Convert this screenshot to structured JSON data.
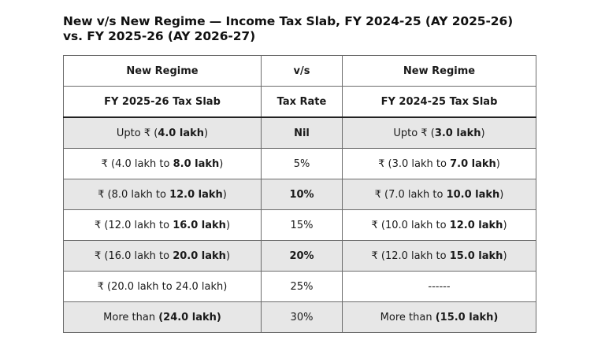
{
  "title": "New v/s New Regime — Income Tax Slab, FY 2024-25 (AY 2025-26) vs. FY 2025-26 (AY 2026-27)",
  "header_row1": [
    "New Regime",
    "v/s",
    "New Regime"
  ],
  "header_row2": [
    "FY 2025-26 Tax Slab",
    "Tax Rate",
    "FY 2024-25 Tax Slab"
  ],
  "rows": [
    {
      "left_pre": "Upto ₹ (",
      "left_bold": "4.0 lakh",
      "left_post": ")",
      "rate": "Nil",
      "rate_bold": true,
      "right_pre": "Upto ₹ (",
      "right_bold": "3.0 lakh",
      "right_post": ")",
      "shaded": true
    },
    {
      "left_pre": "₹ (4.0 lakh to ",
      "left_bold": "8.0 lakh",
      "left_post": ")",
      "rate": "5%",
      "rate_bold": false,
      "right_pre": "₹ (3.0 lakh to ",
      "right_bold": "7.0 lakh",
      "right_post": ")",
      "shaded": false
    },
    {
      "left_pre": "₹ (8.0 lakh to ",
      "left_bold": "12.0 lakh",
      "left_post": ")",
      "rate": "10%",
      "rate_bold": true,
      "right_pre": "₹ (7.0 lakh to ",
      "right_bold": "10.0 lakh",
      "right_post": ")",
      "shaded": true
    },
    {
      "left_pre": "₹ (12.0 lakh to ",
      "left_bold": "16.0 lakh",
      "left_post": ")",
      "rate": "15%",
      "rate_bold": false,
      "right_pre": "₹ (10.0 lakh to ",
      "right_bold": "12.0 lakh",
      "right_post": ")",
      "shaded": false
    },
    {
      "left_pre": "₹ (16.0 lakh to ",
      "left_bold": "20.0 lakh",
      "left_post": ")",
      "rate": "20%",
      "rate_bold": true,
      "right_pre": "₹ (12.0 lakh to ",
      "right_bold": "15.0 lakh",
      "right_post": ")",
      "shaded": true
    },
    {
      "left_pre": "₹ (20.0 lakh to 24.0 lakh)",
      "left_bold": "",
      "left_post": "",
      "rate": "25%",
      "rate_bold": false,
      "right_pre": "------",
      "right_bold": "",
      "right_post": "",
      "shaded": false
    },
    {
      "left_pre": "More than ",
      "left_bold": "(24.0 lakh)",
      "left_post": "",
      "rate": "30%",
      "rate_bold": false,
      "right_pre": "More than ",
      "right_bold": "(15.0 lakh)",
      "right_post": "",
      "shaded": true
    }
  ]
}
